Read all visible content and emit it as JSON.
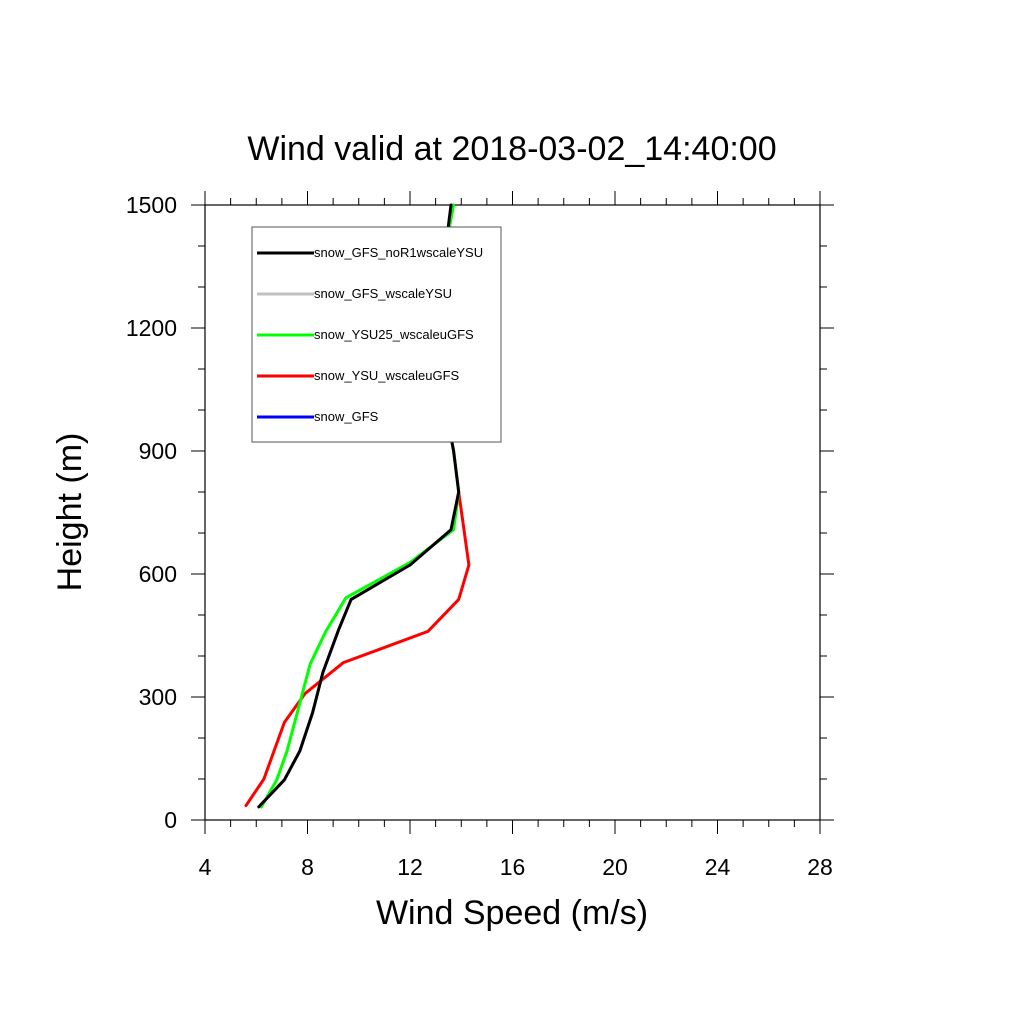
{
  "chart_data": {
    "type": "line",
    "title": "Wind valid at 2018-03-02_14:40:00",
    "xlabel": "Wind Speed (m/s)",
    "ylabel": "Height (m)",
    "xlim": [
      4,
      28
    ],
    "ylim": [
      0,
      1500
    ],
    "xticks": [
      4,
      8,
      12,
      16,
      20,
      24,
      28
    ],
    "yticks": [
      0,
      300,
      600,
      900,
      1200,
      1500
    ],
    "legend_position": "top-left",
    "grid": false,
    "series": [
      {
        "name": "snow_GFS_noR1wscaleYSU",
        "color": "#000000",
        "points": [
          [
            6.1,
            32
          ],
          [
            7.1,
            98
          ],
          [
            7.7,
            168
          ],
          [
            8.2,
            262
          ],
          [
            8.6,
            360
          ],
          [
            9.2,
            462
          ],
          [
            9.7,
            538
          ],
          [
            12.0,
            622
          ],
          [
            13.6,
            708
          ],
          [
            13.9,
            800
          ],
          [
            13.7,
            900
          ],
          [
            13.4,
            1000
          ],
          [
            13.1,
            1148
          ],
          [
            13.2,
            1300
          ],
          [
            13.6,
            1500
          ]
        ]
      },
      {
        "name": "snow_GFS_wscaleYSU",
        "color": "#c0c0c0",
        "points": [
          [
            6.1,
            32
          ],
          [
            7.1,
            98
          ],
          [
            7.7,
            168
          ],
          [
            8.2,
            262
          ],
          [
            8.6,
            360
          ],
          [
            9.2,
            462
          ],
          [
            9.7,
            538
          ],
          [
            12.0,
            622
          ],
          [
            13.6,
            708
          ],
          [
            13.9,
            800
          ],
          [
            13.7,
            900
          ],
          [
            13.4,
            1000
          ],
          [
            13.1,
            1148
          ],
          [
            13.2,
            1300
          ],
          [
            13.6,
            1500
          ]
        ]
      },
      {
        "name": "snow_YSU25_wscaleuGFS",
        "color": "#00ff00",
        "points": [
          [
            6.2,
            32
          ],
          [
            6.8,
            98
          ],
          [
            7.2,
            168
          ],
          [
            7.6,
            262
          ],
          [
            8.1,
            380
          ],
          [
            8.7,
            458
          ],
          [
            9.5,
            542
          ],
          [
            12.0,
            628
          ],
          [
            13.7,
            708
          ],
          [
            13.9,
            800
          ],
          [
            13.7,
            900
          ],
          [
            13.4,
            1000
          ],
          [
            13.0,
            1148
          ],
          [
            13.1,
            1300
          ],
          [
            13.7,
            1500
          ]
        ]
      },
      {
        "name": "snow_YSU_wscaleuGFS",
        "color": "#ff0000",
        "points": [
          [
            5.6,
            35
          ],
          [
            6.3,
            100
          ],
          [
            7.1,
            238
          ],
          [
            7.9,
            308
          ],
          [
            9.4,
            384
          ],
          [
            12.7,
            460
          ],
          [
            13.9,
            538
          ],
          [
            14.3,
            622
          ],
          [
            13.9,
            800
          ]
        ]
      },
      {
        "name": "snow_GFS",
        "color": "#0000ff",
        "points": []
      }
    ]
  }
}
